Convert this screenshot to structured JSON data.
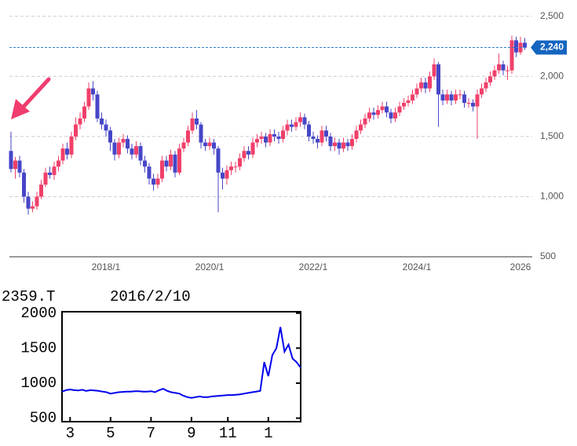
{
  "chart_data": [
    {
      "type": "candlestick",
      "categories": [
        null,
        null,
        null,
        null,
        null,
        null,
        null,
        null,
        null,
        null,
        null,
        null,
        null,
        null,
        null,
        null,
        null,
        null,
        null,
        null,
        null,
        null,
        "2018/1",
        null,
        null,
        null,
        null,
        null,
        null,
        null,
        null,
        null,
        null,
        null,
        null,
        null,
        null,
        null,
        null,
        null,
        null,
        null,
        null,
        null,
        null,
        null,
        "2020/1",
        null,
        null,
        null,
        null,
        null,
        null,
        null,
        null,
        null,
        null,
        null,
        null,
        null,
        null,
        null,
        null,
        null,
        null,
        null,
        null,
        null,
        null,
        null,
        "2022/1",
        null,
        null,
        null,
        null,
        null,
        null,
        null,
        null,
        null,
        null,
        null,
        null,
        null,
        null,
        null,
        null,
        null,
        null,
        null,
        null,
        null,
        null,
        null,
        "2024/1",
        null,
        null,
        null,
        null,
        null,
        null,
        null,
        null,
        null,
        null,
        null,
        null,
        null,
        null,
        null,
        null,
        null,
        null,
        null,
        null,
        null,
        null,
        null,
        "2026",
        null
      ],
      "open": [
        1380,
        1230,
        1300,
        1200,
        1000,
        900,
        920,
        1000,
        1100,
        1200,
        1180,
        1250,
        1300,
        1400,
        1350,
        1500,
        1600,
        1650,
        1750,
        1900,
        1850,
        1650,
        1600,
        1550,
        1450,
        1350,
        1450,
        1480,
        1400,
        1350,
        1420,
        1300,
        1250,
        1150,
        1100,
        1150,
        1300,
        1250,
        1350,
        1200,
        1400,
        1450,
        1550,
        1650,
        1600,
        1450,
        1420,
        1450,
        1400,
        1200,
        1150,
        1220,
        1250,
        1250,
        1320,
        1380,
        1350,
        1450,
        1480,
        1500,
        1450,
        1520,
        1500,
        1480,
        1550,
        1600,
        1580,
        1620,
        1660,
        1600,
        1500,
        1480,
        1450,
        1550,
        1500,
        1420,
        1450,
        1400,
        1450,
        1420,
        1480,
        1550,
        1600,
        1650,
        1700,
        1680,
        1720,
        1750,
        1700,
        1650,
        1700,
        1750,
        1780,
        1800,
        1850,
        1900,
        1950,
        1900,
        2000,
        2100,
        1850,
        1800,
        1850,
        1800,
        1850,
        1850,
        1780,
        1780,
        1750,
        1850,
        1900,
        1950,
        2000,
        2050,
        2100,
        2050,
        2050,
        2300,
        2200,
        2280
      ],
      "high": [
        1540,
        1330,
        1340,
        1230,
        1040,
        960,
        1040,
        1140,
        1240,
        1250,
        1290,
        1340,
        1440,
        1450,
        1540,
        1660,
        1700,
        1790,
        1950,
        1960,
        1880,
        1700,
        1640,
        1580,
        1480,
        1490,
        1520,
        1510,
        1440,
        1460,
        1450,
        1340,
        1280,
        1190,
        1190,
        1340,
        1340,
        1390,
        1380,
        1440,
        1490,
        1590,
        1700,
        1720,
        1620,
        1480,
        1490,
        1480,
        1420,
        1240,
        1260,
        1290,
        1290,
        1360,
        1420,
        1420,
        1490,
        1520,
        1540,
        1530,
        1560,
        1560,
        1540,
        1590,
        1640,
        1640,
        1660,
        1700,
        1690,
        1630,
        1540,
        1510,
        1590,
        1590,
        1530,
        1490,
        1480,
        1490,
        1480,
        1520,
        1590,
        1640,
        1690,
        1740,
        1740,
        1760,
        1790,
        1790,
        1730,
        1740,
        1790,
        1820,
        1840,
        1890,
        1940,
        1990,
        1990,
        2040,
        2150,
        2120,
        1890,
        1890,
        1880,
        1890,
        1890,
        1880,
        1820,
        1810,
        1890,
        1940,
        1990,
        2040,
        2090,
        2190,
        2130,
        2090,
        2340,
        2330,
        2330,
        2320
      ],
      "low": [
        1200,
        1150,
        1160,
        950,
        850,
        870,
        890,
        980,
        1080,
        1150,
        1140,
        1210,
        1270,
        1310,
        1320,
        1470,
        1560,
        1620,
        1720,
        1800,
        1620,
        1560,
        1500,
        1380,
        1300,
        1320,
        1410,
        1360,
        1310,
        1320,
        1260,
        1200,
        1100,
        1050,
        1070,
        1120,
        1210,
        1220,
        1160,
        1180,
        1370,
        1420,
        1520,
        1560,
        1400,
        1380,
        1390,
        1350,
        870,
        1060,
        1100,
        1180,
        1200,
        1220,
        1290,
        1310,
        1320,
        1410,
        1440,
        1410,
        1420,
        1460,
        1440,
        1450,
        1510,
        1540,
        1550,
        1580,
        1560,
        1460,
        1440,
        1400,
        1420,
        1460,
        1380,
        1380,
        1350,
        1370,
        1380,
        1390,
        1450,
        1520,
        1570,
        1620,
        1640,
        1650,
        1690,
        1660,
        1610,
        1620,
        1670,
        1720,
        1750,
        1770,
        1820,
        1870,
        1860,
        1870,
        1970,
        1580,
        1760,
        1770,
        1760,
        1770,
        1810,
        1740,
        1740,
        1710,
        1480,
        1820,
        1870,
        1920,
        1970,
        2020,
        2010,
        1970,
        2020,
        2160,
        2180,
        2220
      ],
      "close": [
        1230,
        1300,
        1200,
        1000,
        900,
        920,
        1000,
        1100,
        1200,
        1180,
        1250,
        1300,
        1400,
        1350,
        1500,
        1600,
        1650,
        1750,
        1900,
        1850,
        1650,
        1600,
        1550,
        1450,
        1350,
        1450,
        1480,
        1400,
        1350,
        1420,
        1300,
        1250,
        1150,
        1100,
        1150,
        1300,
        1250,
        1350,
        1200,
        1400,
        1450,
        1550,
        1650,
        1600,
        1450,
        1420,
        1450,
        1400,
        1200,
        1150,
        1220,
        1250,
        1250,
        1320,
        1380,
        1350,
        1450,
        1480,
        1500,
        1450,
        1520,
        1500,
        1480,
        1550,
        1600,
        1580,
        1620,
        1660,
        1600,
        1500,
        1480,
        1450,
        1550,
        1500,
        1420,
        1450,
        1400,
        1450,
        1420,
        1480,
        1550,
        1600,
        1650,
        1700,
        1680,
        1720,
        1750,
        1700,
        1650,
        1700,
        1750,
        1780,
        1800,
        1850,
        1900,
        1950,
        1900,
        2000,
        2100,
        1850,
        1800,
        1850,
        1800,
        1850,
        1850,
        1780,
        1780,
        1750,
        1850,
        1900,
        1950,
        2000,
        2050,
        2100,
        2050,
        2050,
        2300,
        2200,
        2280,
        2240
      ],
      "up_color": "#f0406a",
      "down_color": "#4646c8",
      "ylim": [
        500,
        2570
      ],
      "yticks": [
        500,
        {
          "value": 1000,
          "label": "1,000"
        },
        {
          "value": 1500,
          "label": "1,500"
        },
        {
          "value": 2000,
          "label": "2,000"
        },
        {
          "value": 2500,
          "label": "2,500"
        }
      ],
      "grid": true,
      "last_price": {
        "value": 2240,
        "label": "2,240"
      }
    },
    {
      "type": "line",
      "title": "2359.T",
      "subtitle": "2016/2/10",
      "categories": [
        null,
        null,
        "3",
        null,
        null,
        null,
        null,
        null,
        null,
        null,
        null,
        null,
        "5",
        null,
        null,
        null,
        null,
        null,
        null,
        null,
        null,
        null,
        "7",
        null,
        null,
        null,
        null,
        null,
        null,
        null,
        null,
        null,
        "9",
        null,
        null,
        null,
        null,
        null,
        null,
        null,
        null,
        "11",
        null,
        null,
        null,
        null,
        null,
        null,
        null,
        null,
        null,
        "1",
        null,
        null,
        null,
        null,
        null,
        null,
        null,
        null
      ],
      "values": [
        880,
        900,
        910,
        900,
        895,
        905,
        890,
        900,
        895,
        890,
        880,
        870,
        850,
        860,
        870,
        875,
        880,
        880,
        885,
        885,
        880,
        880,
        885,
        870,
        900,
        920,
        890,
        870,
        860,
        850,
        820,
        800,
        790,
        800,
        810,
        800,
        800,
        810,
        815,
        820,
        825,
        830,
        830,
        835,
        840,
        850,
        860,
        870,
        880,
        890,
        1300,
        1100,
        1400,
        1500,
        1800,
        1450,
        1550,
        1350,
        1300,
        1220
      ],
      "color": "#0000ee",
      "ylim": [
        450,
        2020
      ],
      "yticks": [
        500,
        1000,
        1500,
        2000
      ]
    }
  ]
}
